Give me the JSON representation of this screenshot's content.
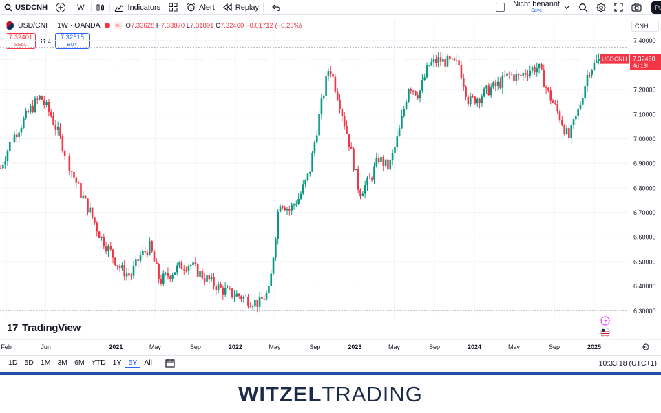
{
  "toolbar": {
    "symbol": "USDCNH",
    "interval": "W",
    "indicators": "Indicators",
    "alert": "Alert",
    "replay": "Replay",
    "layout_name": "Nicht benannt",
    "layout_save": "Save",
    "publish": "Pu"
  },
  "legend": {
    "title": "USD/CNH · 1W · OANDA",
    "status_tag": "≈",
    "open_label": "O",
    "open": "7.33628",
    "high_label": "H",
    "high": "7.33870",
    "low_label": "L",
    "low": "7.31891",
    "close_label": "C",
    "close": "7.32460",
    "change": "−0.01712 (−0.23%)"
  },
  "trade": {
    "sell_price": "7.32401",
    "sell_label": "SELL",
    "spread": "11.4",
    "buy_price": "7.32515",
    "buy_label": "BUY"
  },
  "currency_select": "CNH",
  "price_label": {
    "symbol": "USDCNH",
    "price": "7.32460",
    "countdown": "4d 13h"
  },
  "logo_text": "TradingView",
  "bottom": {
    "ranges": [
      "1D",
      "5D",
      "1M",
      "3M",
      "6M",
      "YTD",
      "1Y",
      "5Y",
      "All"
    ],
    "active_range": "5Y",
    "clock": "10:33:18 (UTC+1)"
  },
  "brand": {
    "part1": "WITZEL",
    "part2": "TRADING"
  },
  "colors": {
    "up": "#089981",
    "down": "#f23645",
    "accent": "#2962ff",
    "brand_bar": "#1e4fa8"
  },
  "chart_data": {
    "type": "candlestick",
    "title": "USD/CNH · 1W · OANDA",
    "ylim": [
      6.27,
      7.43
    ],
    "y_ticks": [
      "7.40000",
      "7.30000",
      "7.20000",
      "7.10000",
      "7.00000",
      "6.90000",
      "6.80000",
      "6.70000",
      "6.60000",
      "6.50000",
      "6.40000",
      "6.30000"
    ],
    "x_tick_labels": [
      "Feb",
      "Jun",
      "2021",
      "May",
      "Sep",
      "2022",
      "May",
      "Sep",
      "2023",
      "May",
      "Sep",
      "2024",
      "May",
      "Sep",
      "2025"
    ],
    "x_tick_dates": [
      "2020-02",
      "2020-06",
      "2021-01",
      "2021-05",
      "2021-09",
      "2022-01",
      "2022-05",
      "2022-09",
      "2023-01",
      "2023-05",
      "2023-09",
      "2024-01",
      "2024-05",
      "2024-09",
      "2025-01"
    ],
    "last_price": 7.3246,
    "period_high": 7.37,
    "period_low": 6.3,
    "weekly_close_path": [
      {
        "date": "2020-01",
        "close": 6.88
      },
      {
        "date": "2020-02",
        "close": 6.99
      },
      {
        "date": "2020-04",
        "close": 7.12
      },
      {
        "date": "2020-05",
        "close": 7.17
      },
      {
        "date": "2020-06",
        "close": 7.1
      },
      {
        "date": "2020-07",
        "close": 7.0
      },
      {
        "date": "2020-08",
        "close": 6.88
      },
      {
        "date": "2020-09",
        "close": 6.78
      },
      {
        "date": "2020-10",
        "close": 6.7
      },
      {
        "date": "2020-11",
        "close": 6.6
      },
      {
        "date": "2020-12",
        "close": 6.54
      },
      {
        "date": "2021-01",
        "close": 6.47
      },
      {
        "date": "2021-02",
        "close": 6.44
      },
      {
        "date": "2021-03",
        "close": 6.52
      },
      {
        "date": "2021-04",
        "close": 6.56
      },
      {
        "date": "2021-05",
        "close": 6.42
      },
      {
        "date": "2021-06",
        "close": 6.45
      },
      {
        "date": "2021-07",
        "close": 6.48
      },
      {
        "date": "2021-08",
        "close": 6.49
      },
      {
        "date": "2021-09",
        "close": 6.45
      },
      {
        "date": "2021-10",
        "close": 6.42
      },
      {
        "date": "2021-11",
        "close": 6.39
      },
      {
        "date": "2021-12",
        "close": 6.37
      },
      {
        "date": "2022-01",
        "close": 6.36
      },
      {
        "date": "2022-02",
        "close": 6.34
      },
      {
        "date": "2022-03",
        "close": 6.33
      },
      {
        "date": "2022-04",
        "close": 6.38
      },
      {
        "date": "2022-05",
        "close": 6.75
      },
      {
        "date": "2022-06",
        "close": 6.71
      },
      {
        "date": "2022-07",
        "close": 6.76
      },
      {
        "date": "2022-08",
        "close": 6.86
      },
      {
        "date": "2022-09",
        "close": 7.1
      },
      {
        "date": "2022-10",
        "close": 7.3
      },
      {
        "date": "2022-11",
        "close": 7.15
      },
      {
        "date": "2022-12",
        "close": 6.98
      },
      {
        "date": "2023-01",
        "close": 6.78
      },
      {
        "date": "2023-02",
        "close": 6.83
      },
      {
        "date": "2023-03",
        "close": 6.92
      },
      {
        "date": "2023-04",
        "close": 6.88
      },
      {
        "date": "2023-05",
        "close": 7.02
      },
      {
        "date": "2023-06",
        "close": 7.22
      },
      {
        "date": "2023-07",
        "close": 7.18
      },
      {
        "date": "2023-08",
        "close": 7.3
      },
      {
        "date": "2023-09",
        "close": 7.32
      },
      {
        "date": "2023-10",
        "close": 7.31
      },
      {
        "date": "2023-11",
        "close": 7.3
      },
      {
        "date": "2023-12",
        "close": 7.15
      },
      {
        "date": "2024-01",
        "close": 7.17
      },
      {
        "date": "2024-02",
        "close": 7.2
      },
      {
        "date": "2024-03",
        "close": 7.22
      },
      {
        "date": "2024-04",
        "close": 7.26
      },
      {
        "date": "2024-05",
        "close": 7.25
      },
      {
        "date": "2024-06",
        "close": 7.28
      },
      {
        "date": "2024-07",
        "close": 7.29
      },
      {
        "date": "2024-08",
        "close": 7.18
      },
      {
        "date": "2024-09",
        "close": 7.1
      },
      {
        "date": "2024-10",
        "close": 7.0
      },
      {
        "date": "2024-11",
        "close": 7.12
      },
      {
        "date": "2024-12",
        "close": 7.28
      },
      {
        "date": "2025-01",
        "close": 7.32
      }
    ]
  }
}
